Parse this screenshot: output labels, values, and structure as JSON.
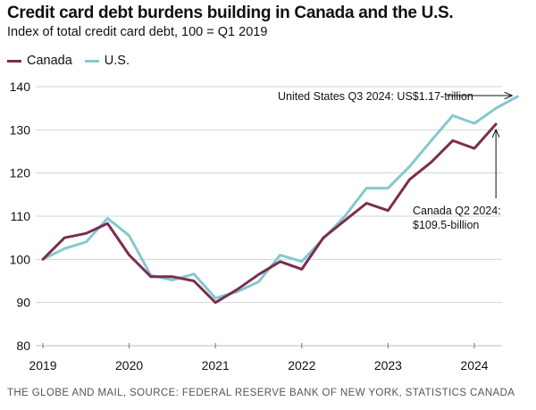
{
  "header": {
    "title": "Credit card debt burdens building in Canada and the U.S.",
    "subtitle": "Index of total credit card debt, 100 = Q1 2019"
  },
  "legend": [
    {
      "label": "Canada",
      "color": "#7b2d4f"
    },
    {
      "label": "U.S.",
      "color": "#86c8cf"
    }
  ],
  "footer": {
    "source": "THE GLOBE AND MAIL, SOURCE: FEDERAL RESERVE BANK OF NEW YORK, STATISTICS CANADA"
  },
  "chart_data": {
    "type": "line",
    "title": "Credit card debt burdens building in Canada and the U.S.",
    "subtitle": "Index of total credit card debt, 100 = Q1 2019",
    "xlabel": "",
    "ylabel": "",
    "x_unit": "quarter",
    "x_start": "Q1 2019",
    "xlim": [
      2019,
      2024.6
    ],
    "ylim": [
      80,
      140
    ],
    "yticks": [
      80,
      90,
      100,
      110,
      120,
      130,
      140
    ],
    "xticks": [
      2019,
      2020,
      2021,
      2022,
      2023,
      2024
    ],
    "ytick_labels": [
      "80",
      "90",
      "100",
      "110",
      "120",
      "130",
      "140"
    ],
    "xtick_labels": [
      "2019",
      "2020",
      "2021",
      "2022",
      "2023",
      "2024"
    ],
    "grid": "horizontal",
    "legend_position": "top-left",
    "series": [
      {
        "name": "Canada",
        "color": "#7b2d4f",
        "x": [
          2019.0,
          2019.25,
          2019.5,
          2019.75,
          2020.0,
          2020.25,
          2020.5,
          2020.75,
          2021.0,
          2021.25,
          2021.5,
          2021.75,
          2022.0,
          2022.25,
          2022.5,
          2022.75,
          2023.0,
          2023.25,
          2023.5,
          2023.75,
          2024.0,
          2024.25
        ],
        "values": [
          100,
          105,
          106,
          108.3,
          101,
          96,
          96,
          95,
          90,
          93,
          96.5,
          99.5,
          97.7,
          105,
          109,
          113,
          111.3,
          118.5,
          122.5,
          127.5,
          125.7,
          131.3
        ]
      },
      {
        "name": "U.S.",
        "color": "#86c8cf",
        "x": [
          2019.0,
          2019.25,
          2019.5,
          2019.75,
          2020.0,
          2020.25,
          2020.5,
          2020.75,
          2021.0,
          2021.25,
          2021.5,
          2021.75,
          2022.0,
          2022.25,
          2022.5,
          2022.75,
          2023.0,
          2023.25,
          2023.5,
          2023.75,
          2024.0,
          2024.25,
          2024.5
        ],
        "values": [
          100,
          102.5,
          104,
          109.5,
          105.5,
          96.3,
          95.2,
          96.6,
          91,
          92.5,
          94.8,
          101,
          99.5,
          104.8,
          110,
          116.5,
          116.5,
          121.5,
          127.5,
          133.3,
          131.5,
          135,
          137.7
        ]
      }
    ],
    "annotations": [
      {
        "series": "U.S.",
        "x": 2024.5,
        "text": "United States Q3 2024: US$1.17-trillion"
      },
      {
        "series": "Canada",
        "x": 2024.25,
        "text_lines": [
          "Canada Q2 2024:",
          "$109.5-billion"
        ]
      }
    ]
  }
}
